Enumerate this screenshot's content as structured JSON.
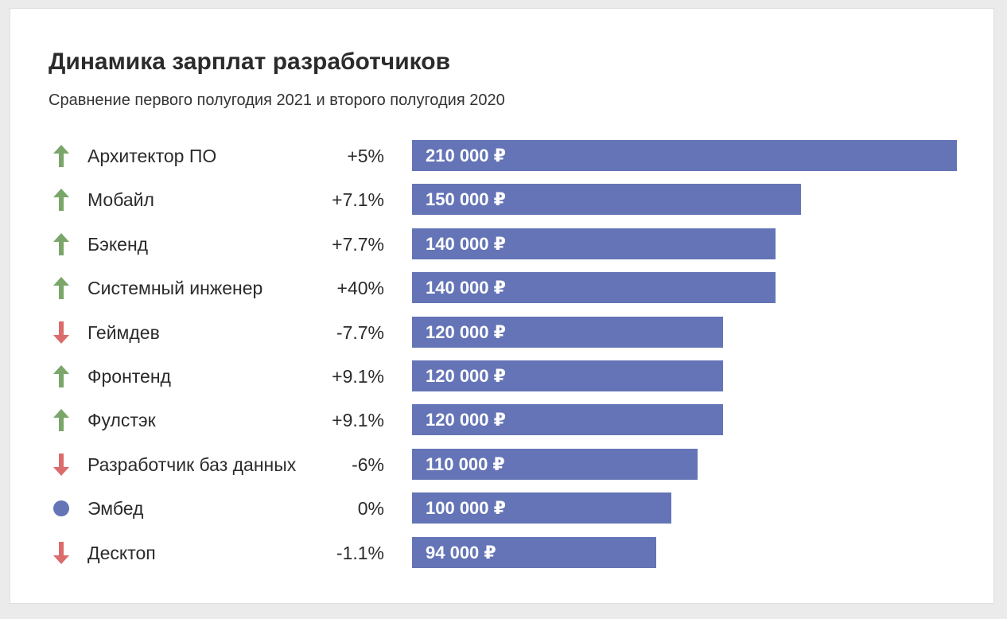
{
  "title": "Динамика зарплат разработчиков",
  "subtitle": "Сравнение первого полугодия 2021 и второго полугодия 2020",
  "colors": {
    "bar": "#6474b6",
    "up": "#7aa66a",
    "down": "#dc6b6b",
    "neutral": "#6474b6"
  },
  "chart_data": {
    "type": "bar",
    "orientation": "horizontal",
    "title": "Динамика зарплат разработчиков",
    "subtitle": "Сравнение первого полугодия 2021 и второго полугодия 2020",
    "xlim": [
      0,
      210000
    ],
    "rows": [
      {
        "category": "Архитектор ПО",
        "change": "+5%",
        "trend": "up",
        "value": 210000,
        "value_label": "210 000 ₽"
      },
      {
        "category": "Мобайл",
        "change": "+7.1%",
        "trend": "up",
        "value": 150000,
        "value_label": "150 000 ₽"
      },
      {
        "category": "Бэкенд",
        "change": "+7.7%",
        "trend": "up",
        "value": 140000,
        "value_label": "140 000 ₽"
      },
      {
        "category": "Системный инженер",
        "change": "+40%",
        "trend": "up",
        "value": 140000,
        "value_label": "140 000 ₽"
      },
      {
        "category": "Геймдев",
        "change": "-7.7%",
        "trend": "down",
        "value": 120000,
        "value_label": "120 000 ₽"
      },
      {
        "category": "Фронтенд",
        "change": "+9.1%",
        "trend": "up",
        "value": 120000,
        "value_label": "120 000 ₽"
      },
      {
        "category": "Фулстэк",
        "change": "+9.1%",
        "trend": "up",
        "value": 120000,
        "value_label": "120 000 ₽"
      },
      {
        "category": "Разработчик баз данных",
        "change": "-6%",
        "trend": "down",
        "value": 110000,
        "value_label": "110 000 ₽"
      },
      {
        "category": "Эмбед",
        "change": "0%",
        "trend": "neutral",
        "value": 100000,
        "value_label": "100 000 ₽"
      },
      {
        "category": "Десктоп",
        "change": "-1.1%",
        "trend": "down",
        "value": 94000,
        "value_label": "94 000 ₽"
      }
    ]
  }
}
